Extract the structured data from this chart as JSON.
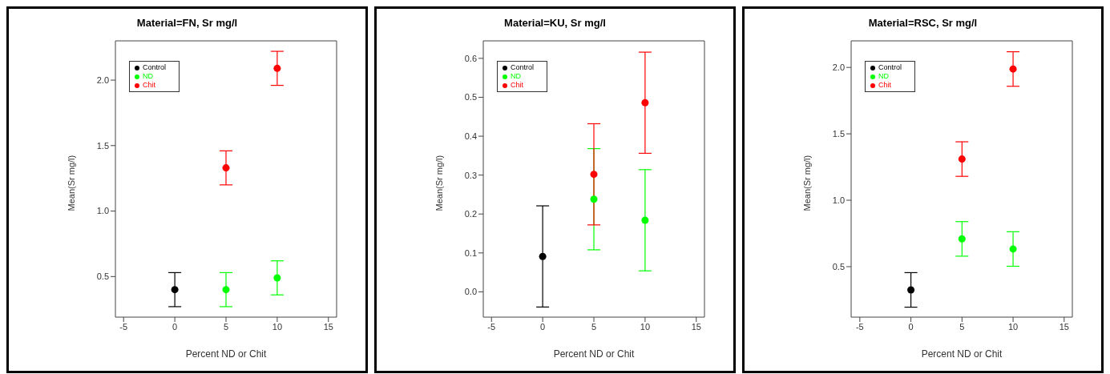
{
  "chart_data": [
    {
      "type": "scatter",
      "title": "Material=FN, Sr mg/l",
      "xlabel": "Percent ND or Chit",
      "ylabel": "Mean(Sr mg/l)",
      "xlim": [
        -5.8,
        15.8
      ],
      "xticks": [
        -5,
        0,
        5,
        10,
        15
      ],
      "ylim": [
        0.19,
        2.3
      ],
      "yticks": [
        0.5,
        {
          "value": 1,
          "label": "1.0"
        },
        1.5,
        {
          "value": 2,
          "label": "2.0"
        }
      ],
      "marker": "circle",
      "legend": "top left",
      "grid": false,
      "series": [
        {
          "name": "Control",
          "color": "#000000",
          "x": [
            0
          ],
          "values": [
            0.4
          ],
          "errors": [
            0.13
          ]
        },
        {
          "name": "ND",
          "color": "#00ff00",
          "x": [
            5,
            10
          ],
          "values": [
            0.4,
            0.49
          ],
          "errors": [
            0.13,
            0.13
          ]
        },
        {
          "name": "Chit",
          "color": "#ff0000",
          "x": [
            5,
            10
          ],
          "values": [
            1.33,
            2.09
          ],
          "errors": [
            0.13,
            0.13
          ]
        }
      ]
    },
    {
      "type": "scatter",
      "title": "Material=KU, Sr mg/l",
      "xlabel": "Percent ND or Chit",
      "ylabel": "Mean(Sr mg/l)",
      "xlim": [
        -5.8,
        15.8
      ],
      "xticks": [
        -5,
        0,
        5,
        10,
        15
      ],
      "ylim": [
        -0.065,
        0.645
      ],
      "yticks": [
        {
          "value": 0,
          "label": "0.0"
        },
        0.1,
        0.2,
        0.3,
        0.4,
        0.5,
        0.6
      ],
      "marker": "circle",
      "legend": "top left",
      "grid": false,
      "series": [
        {
          "name": "Control",
          "color": "#000000",
          "x": [
            0
          ],
          "values": [
            0.091
          ],
          "errors": [
            0.13
          ]
        },
        {
          "name": "ND",
          "color": "#00ff00",
          "x": [
            5,
            10
          ],
          "values": [
            0.238,
            0.184
          ],
          "errors": [
            0.13,
            0.13
          ]
        },
        {
          "name": "Chit",
          "color": "#ff0000",
          "x": [
            5,
            10
          ],
          "values": [
            0.302,
            0.486
          ],
          "errors": [
            0.13,
            0.13
          ]
        }
      ]
    },
    {
      "type": "scatter",
      "title": "Material=RSC, Sr mg/l",
      "xlabel": "Percent ND or Chit",
      "ylabel": "Mean(Sr mg/l)",
      "xlim": [
        -5.85,
        15.8
      ],
      "xticks": [
        -5,
        0,
        5,
        10,
        15
      ],
      "ylim": [
        0.12,
        2.2
      ],
      "yticks": [
        0.5,
        {
          "value": 1,
          "label": "1.0"
        },
        1.5,
        {
          "value": 2,
          "label": "2.0"
        }
      ],
      "marker": "circle",
      "legend": "top left",
      "grid": false,
      "series": [
        {
          "name": "Control",
          "color": "#000000",
          "x": [
            0
          ],
          "values": [
            0.325
          ],
          "errors": [
            0.13
          ]
        },
        {
          "name": "ND",
          "color": "#00ff00",
          "x": [
            5,
            10
          ],
          "values": [
            0.709,
            0.633
          ],
          "errors": [
            0.13,
            0.13
          ]
        },
        {
          "name": "Chit",
          "color": "#ff0000",
          "x": [
            5,
            10
          ],
          "values": [
            1.31,
            1.988
          ],
          "errors": [
            0.13,
            0.13
          ]
        }
      ]
    }
  ]
}
